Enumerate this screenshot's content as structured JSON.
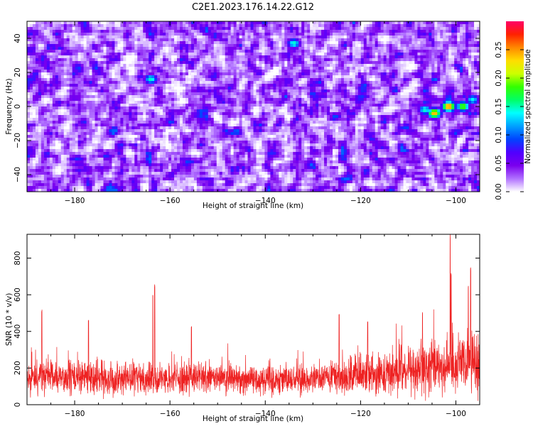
{
  "title": "C2E1.2023.176.14.22.G12",
  "chart_data": [
    {
      "type": "heatmap",
      "xlabel": "Height of straight line (km)",
      "ylabel": "Frequency (Hz)",
      "xlim": [
        -190,
        -95
      ],
      "ylim": [
        -50,
        50
      ],
      "xticks": [
        -180,
        -160,
        -140,
        -120,
        -100
      ],
      "yticks": [
        -40,
        -20,
        0,
        20,
        40
      ],
      "colorbar": {
        "label": "Normalized spectral amplitude",
        "range": [
          0,
          0.3
        ],
        "ticks": [
          0.0,
          0.05,
          0.1,
          0.15,
          0.2,
          0.25
        ],
        "tick_labels": [
          "0.00",
          "0.05",
          "0.10",
          "0.15",
          "0.20",
          "0.25"
        ],
        "colormap": [
          "#ffffff",
          "#b070ff",
          "#7a00ee",
          "#5000ff",
          "#0044ff",
          "#00a0ff",
          "#00ffff",
          "#00ff66",
          "#33ff00",
          "#ccff00",
          "#ffdd00",
          "#ff8800",
          "#ff2200",
          "#ff0066"
        ]
      },
      "background_amplitude_range": [
        0.0,
        0.1
      ],
      "hotspots": [
        {
          "x": -101.5,
          "y": 0,
          "amplitude": 0.27
        },
        {
          "x": -104.5,
          "y": -4,
          "amplitude": 0.25
        },
        {
          "x": -98.5,
          "y": 0,
          "amplitude": 0.2
        },
        {
          "x": -106.5,
          "y": -2,
          "amplitude": 0.15
        },
        {
          "x": -164,
          "y": 16,
          "amplitude": 0.15
        },
        {
          "x": -134,
          "y": 37,
          "amplitude": 0.15
        },
        {
          "x": -96.5,
          "y": 4,
          "amplitude": 0.14
        }
      ]
    },
    {
      "type": "line",
      "xlabel": "Height of straight line (km)",
      "ylabel": "SNR (10 * v/v)",
      "xlim": [
        -190,
        -95
      ],
      "ylim": [
        0,
        930
      ],
      "xticks": [
        -180,
        -160,
        -140,
        -120,
        -100
      ],
      "yticks": [
        0,
        200,
        400,
        600,
        800
      ],
      "color": "#ee2222",
      "baseline_snr": [
        {
          "x": -190,
          "mean": 150,
          "spread": 70
        },
        {
          "x": -165,
          "mean": 145,
          "spread": 65
        },
        {
          "x": -130,
          "mean": 140,
          "spread": 60
        },
        {
          "x": -115,
          "mean": 170,
          "spread": 85
        },
        {
          "x": -105,
          "mean": 210,
          "spread": 110
        },
        {
          "x": -95,
          "mean": 220,
          "spread": 120
        }
      ],
      "peaks": [
        {
          "x": -163.2,
          "y": 660
        },
        {
          "x": -163.6,
          "y": 600
        },
        {
          "x": -186.9,
          "y": 520
        },
        {
          "x": -177.1,
          "y": 470
        },
        {
          "x": -101.2,
          "y": 930
        },
        {
          "x": -101.0,
          "y": 720
        },
        {
          "x": -96.9,
          "y": 750
        },
        {
          "x": -97.4,
          "y": 650
        },
        {
          "x": -107.0,
          "y": 510
        },
        {
          "x": -118.5,
          "y": 460
        },
        {
          "x": -124.5,
          "y": 500
        },
        {
          "x": -155.5,
          "y": 430
        }
      ]
    }
  ]
}
